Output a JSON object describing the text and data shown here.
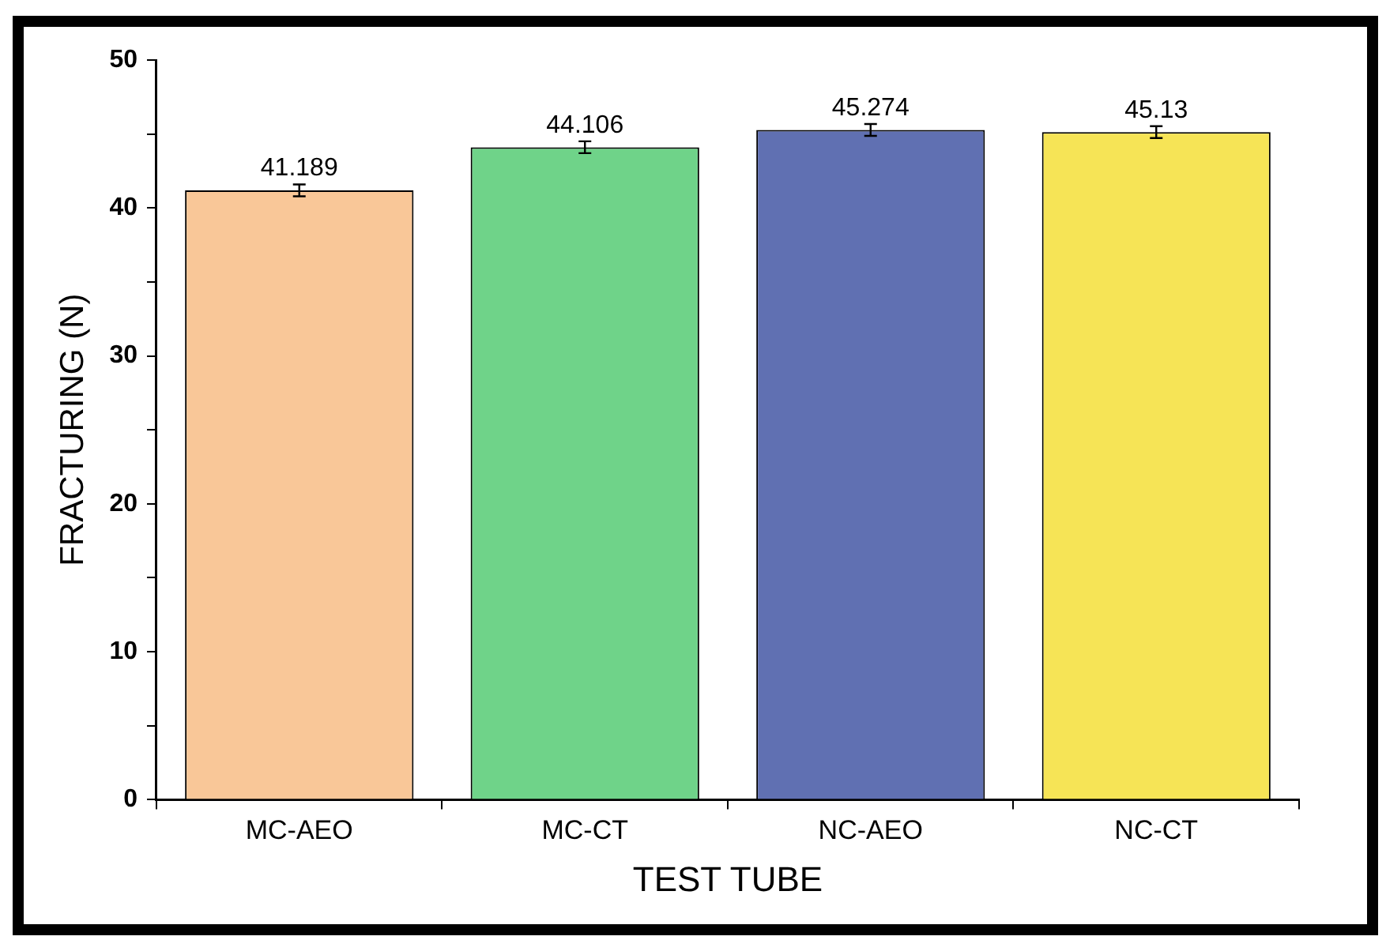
{
  "chart_data": {
    "type": "bar",
    "xlabel": "TEST TUBE",
    "ylabel": "FRACTURING (N)",
    "categories": [
      "MC-AEO",
      "MC-CT",
      "NC-AEO",
      "NC-CT"
    ],
    "values": [
      41.189,
      44.106,
      45.274,
      45.13
    ],
    "colors": [
      "#f9c798",
      "#6fd389",
      "#6070b2",
      "#f6e456"
    ],
    "errors": [
      0.4,
      0.4,
      0.4,
      0.4
    ],
    "data_labels": true,
    "ylim": [
      0,
      50
    ],
    "yticks": [
      0,
      {
        "value": 5,
        "label": null
      },
      10,
      {
        "value": 15,
        "label": null
      },
      20,
      {
        "value": 25,
        "label": null
      },
      30,
      {
        "value": 35,
        "label": null
      },
      40,
      {
        "value": 45,
        "label": null
      },
      50
    ],
    "grid": false,
    "legend": false
  }
}
